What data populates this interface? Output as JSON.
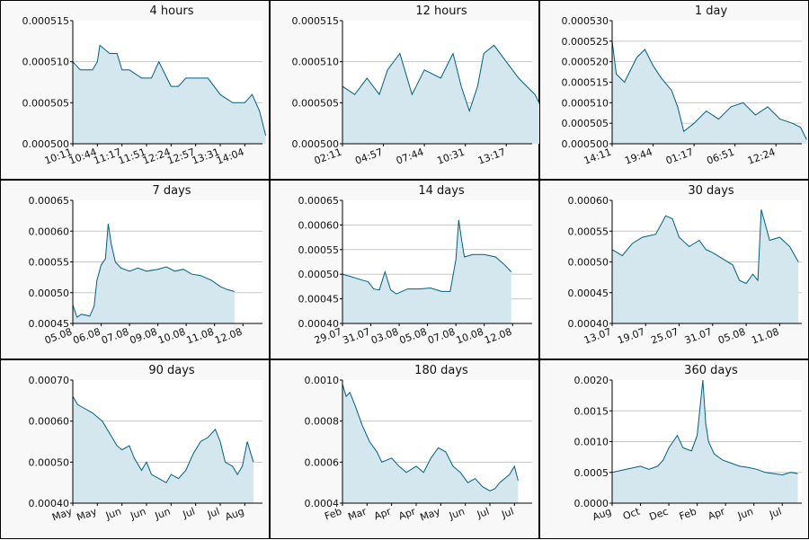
{
  "colors": {
    "line": "#006080",
    "fill": "#d4e6ee",
    "grid": "#c7c7c7",
    "frame": "#000000",
    "background": "#f8f8f8"
  },
  "chart_data": [
    {
      "type": "area",
      "title": "4 hours",
      "ylim": [
        0.0005,
        0.000515
      ],
      "yticks": [
        "0.000500",
        "0.000505",
        "0.000510",
        "0.000515"
      ],
      "xticks": [
        "10:11",
        "10:44",
        "11:17",
        "11:51",
        "12:24",
        "12:57",
        "13:31",
        "14:04"
      ],
      "x": [
        0,
        0.3,
        0.8,
        1.0,
        1.1,
        1.5,
        1.8,
        2.0,
        2.3,
        2.8,
        3.2,
        3.5,
        4.0,
        4.3,
        4.6,
        5.0,
        5.5,
        6.0,
        6.5,
        7.0,
        7.3,
        7.6,
        7.85
      ],
      "values": [
        0.00051,
        0.000509,
        0.000509,
        0.00051,
        0.000512,
        0.000511,
        0.000511,
        0.000509,
        0.000509,
        0.000508,
        0.000508,
        0.00051,
        0.000507,
        0.000507,
        0.000508,
        0.000508,
        0.000508,
        0.000506,
        0.000505,
        0.000505,
        0.000506,
        0.000504,
        0.000501
      ]
    },
    {
      "type": "area",
      "title": "12 hours",
      "ylim": [
        0.0005,
        0.000515
      ],
      "yticks": [
        "0.000500",
        "0.000505",
        "0.000510",
        "0.000515"
      ],
      "xticks": [
        "02:11",
        "04:57",
        "07:44",
        "10:31",
        "13:17"
      ],
      "x": [
        0,
        0.3,
        0.6,
        0.9,
        1.1,
        1.4,
        1.7,
        2.0,
        2.4,
        2.7,
        2.9,
        3.1,
        3.3,
        3.45,
        3.7,
        4.0,
        4.3,
        4.5,
        4.7,
        4.9,
        4.98
      ],
      "values": [
        0.000507,
        0.000506,
        0.000508,
        0.000506,
        0.000509,
        0.000511,
        0.000506,
        0.000509,
        0.000508,
        0.000511,
        0.000507,
        0.000504,
        0.000507,
        0.000511,
        0.000512,
        0.00051,
        0.000508,
        0.000507,
        0.000506,
        0.000504,
        0.000501
      ]
    },
    {
      "type": "area",
      "title": "1 day",
      "ylim": [
        0.0005,
        0.00053
      ],
      "yticks": [
        "0.000500",
        "0.000505",
        "0.000510",
        "0.000515",
        "0.000520",
        "0.000525",
        "0.000530"
      ],
      "xticks": [
        "14:11",
        "19:44",
        "01:17",
        "06:51",
        "12:24"
      ],
      "x": [
        0,
        0.1,
        0.3,
        0.6,
        0.8,
        1.0,
        1.2,
        1.45,
        1.6,
        1.75,
        2.0,
        2.3,
        2.6,
        2.9,
        3.2,
        3.5,
        3.8,
        4.1,
        4.4,
        4.6,
        4.75
      ],
      "values": [
        0.000525,
        0.000517,
        0.000515,
        0.000521,
        0.000523,
        0.000519,
        0.000516,
        0.000513,
        0.000509,
        0.000503,
        0.000505,
        0.000508,
        0.000506,
        0.000509,
        0.00051,
        0.000507,
        0.000509,
        0.000506,
        0.000505,
        0.000504,
        0.000501
      ]
    },
    {
      "type": "area",
      "title": "7 days",
      "ylim": [
        0.00045,
        0.00065
      ],
      "yticks": [
        "0.00045",
        "0.00050",
        "0.00055",
        "0.00060",
        "0.00065"
      ],
      "xticks": [
        "05.08",
        "06.08",
        "07.08",
        "09.08",
        "10.08",
        "11.08",
        "12.08"
      ],
      "x": [
        0,
        0.15,
        0.3,
        0.6,
        0.75,
        0.85,
        1.0,
        1.15,
        1.25,
        1.35,
        1.5,
        1.7,
        2.0,
        2.3,
        2.6,
        3.0,
        3.3,
        3.6,
        3.9,
        4.2,
        4.5,
        4.9,
        5.2,
        5.45,
        5.7
      ],
      "values": [
        0.00048,
        0.00046,
        0.000465,
        0.000462,
        0.000478,
        0.00052,
        0.000545,
        0.000555,
        0.000612,
        0.00058,
        0.00055,
        0.00054,
        0.000535,
        0.00054,
        0.000535,
        0.000538,
        0.000542,
        0.000535,
        0.000538,
        0.00053,
        0.000528,
        0.00052,
        0.00051,
        0.000505,
        0.000502
      ]
    },
    {
      "type": "area",
      "title": "14 days",
      "ylim": [
        0.0004,
        0.00065
      ],
      "yticks": [
        "0.00040",
        "0.00045",
        "0.00050",
        "0.00055",
        "0.00060",
        "0.00065"
      ],
      "xticks": [
        "29.07",
        "31.07",
        "03.08",
        "05.08",
        "07.08",
        "10.08",
        "12.08"
      ],
      "x": [
        0,
        0.3,
        0.7,
        0.9,
        1.1,
        1.3,
        1.5,
        1.7,
        1.9,
        2.3,
        2.7,
        3.1,
        3.5,
        3.8,
        4.0,
        4.1,
        4.2,
        4.3,
        4.6,
        5.0,
        5.4,
        5.7,
        5.95
      ],
      "values": [
        0.0005,
        0.000495,
        0.000488,
        0.000485,
        0.00047,
        0.000468,
        0.000505,
        0.000468,
        0.00046,
        0.00047,
        0.00047,
        0.000472,
        0.000465,
        0.000465,
        0.00053,
        0.00061,
        0.00057,
        0.000535,
        0.00054,
        0.00054,
        0.000535,
        0.00052,
        0.000505
      ]
    },
    {
      "type": "area",
      "title": "30 days",
      "ylim": [
        0.0004,
        0.0006
      ],
      "yticks": [
        "0.00040",
        "0.00045",
        "0.00050",
        "0.00055",
        "0.00060"
      ],
      "xticks": [
        "13.07",
        "19.07",
        "25.07",
        "31.07",
        "05.08",
        "11.08"
      ],
      "x": [
        0,
        0.3,
        0.6,
        0.9,
        1.3,
        1.6,
        1.8,
        2.0,
        2.3,
        2.6,
        2.8,
        3.0,
        3.3,
        3.6,
        3.8,
        4.0,
        4.2,
        4.35,
        4.45,
        4.7,
        5.0,
        5.3,
        5.56
      ],
      "values": [
        0.00052,
        0.00051,
        0.00053,
        0.00054,
        0.000545,
        0.000575,
        0.00057,
        0.00054,
        0.000525,
        0.000535,
        0.00052,
        0.000515,
        0.000505,
        0.000495,
        0.00047,
        0.000465,
        0.00048,
        0.00047,
        0.000585,
        0.000535,
        0.00054,
        0.000525,
        0.0005
      ]
    },
    {
      "type": "area",
      "title": "90 days",
      "ylim": [
        0.0004,
        0.0007
      ],
      "yticks": [
        "0.00040",
        "0.00050",
        "0.00060",
        "0.00070"
      ],
      "xticks": [
        "May",
        "May",
        "Jun",
        "Jun",
        "Jun",
        "Jul",
        "Jul",
        "Aug"
      ],
      "x": [
        0,
        0.2,
        0.5,
        0.8,
        1.2,
        1.5,
        1.8,
        2.0,
        2.3,
        2.5,
        2.8,
        3.0,
        3.2,
        3.5,
        3.8,
        4.0,
        4.3,
        4.6,
        4.9,
        5.2,
        5.5,
        5.8,
        6.0,
        6.2,
        6.5,
        6.7,
        6.9,
        7.1,
        7.35
      ],
      "values": [
        0.00066,
        0.00064,
        0.00063,
        0.00062,
        0.0006,
        0.00057,
        0.00054,
        0.00053,
        0.00054,
        0.00051,
        0.00048,
        0.0005,
        0.00047,
        0.00046,
        0.00045,
        0.00047,
        0.00046,
        0.00048,
        0.00052,
        0.00055,
        0.00056,
        0.00058,
        0.00055,
        0.0005,
        0.00049,
        0.00047,
        0.00049,
        0.00055,
        0.0005
      ]
    },
    {
      "type": "area",
      "title": "180 days",
      "ylim": [
        0.0004,
        0.001
      ],
      "yticks": [
        "0.0004",
        "0.0006",
        "0.0008",
        "0.0010"
      ],
      "xticks": [
        "Feb",
        "Mar",
        "Apr",
        "Apr",
        "May",
        "Jun",
        "Jul",
        "Jul"
      ],
      "x": [
        0,
        0.15,
        0.3,
        0.5,
        0.8,
        1.1,
        1.4,
        1.6,
        2.0,
        2.3,
        2.6,
        3.0,
        3.3,
        3.6,
        3.9,
        4.2,
        4.5,
        4.8,
        5.1,
        5.4,
        5.7,
        6.0,
        6.2,
        6.4,
        6.6,
        6.8,
        7.0,
        7.15
      ],
      "values": [
        0.00098,
        0.00092,
        0.00094,
        0.00088,
        0.00078,
        0.0007,
        0.00065,
        0.0006,
        0.00062,
        0.00058,
        0.00055,
        0.00058,
        0.00055,
        0.00062,
        0.00067,
        0.00065,
        0.00058,
        0.00055,
        0.0005,
        0.00052,
        0.00048,
        0.00046,
        0.00047,
        0.0005,
        0.00052,
        0.00054,
        0.00058,
        0.00051
      ]
    },
    {
      "type": "area",
      "title": "360 days",
      "ylim": [
        0.0,
        0.002
      ],
      "yticks": [
        "0.0000",
        "0.0005",
        "0.0010",
        "0.0015",
        "0.0020"
      ],
      "xticks": [
        "Aug",
        "Oct",
        "Dec",
        "Feb",
        "Apr",
        "Jun",
        "Jul"
      ],
      "x": [
        0,
        0.5,
        1.0,
        1.3,
        1.6,
        1.8,
        2.0,
        2.3,
        2.5,
        2.8,
        3.0,
        3.2,
        3.3,
        3.4,
        3.6,
        3.9,
        4.2,
        4.5,
        4.8,
        5.1,
        5.4,
        5.7,
        6.0,
        6.3,
        6.55
      ],
      "values": [
        0.0005,
        0.00055,
        0.0006,
        0.00055,
        0.0006,
        0.0007,
        0.0009,
        0.0011,
        0.0009,
        0.00085,
        0.0011,
        0.002,
        0.0013,
        0.001,
        0.0008,
        0.0007,
        0.00065,
        0.0006,
        0.00058,
        0.00055,
        0.0005,
        0.00048,
        0.00046,
        0.0005,
        0.00048
      ]
    }
  ]
}
